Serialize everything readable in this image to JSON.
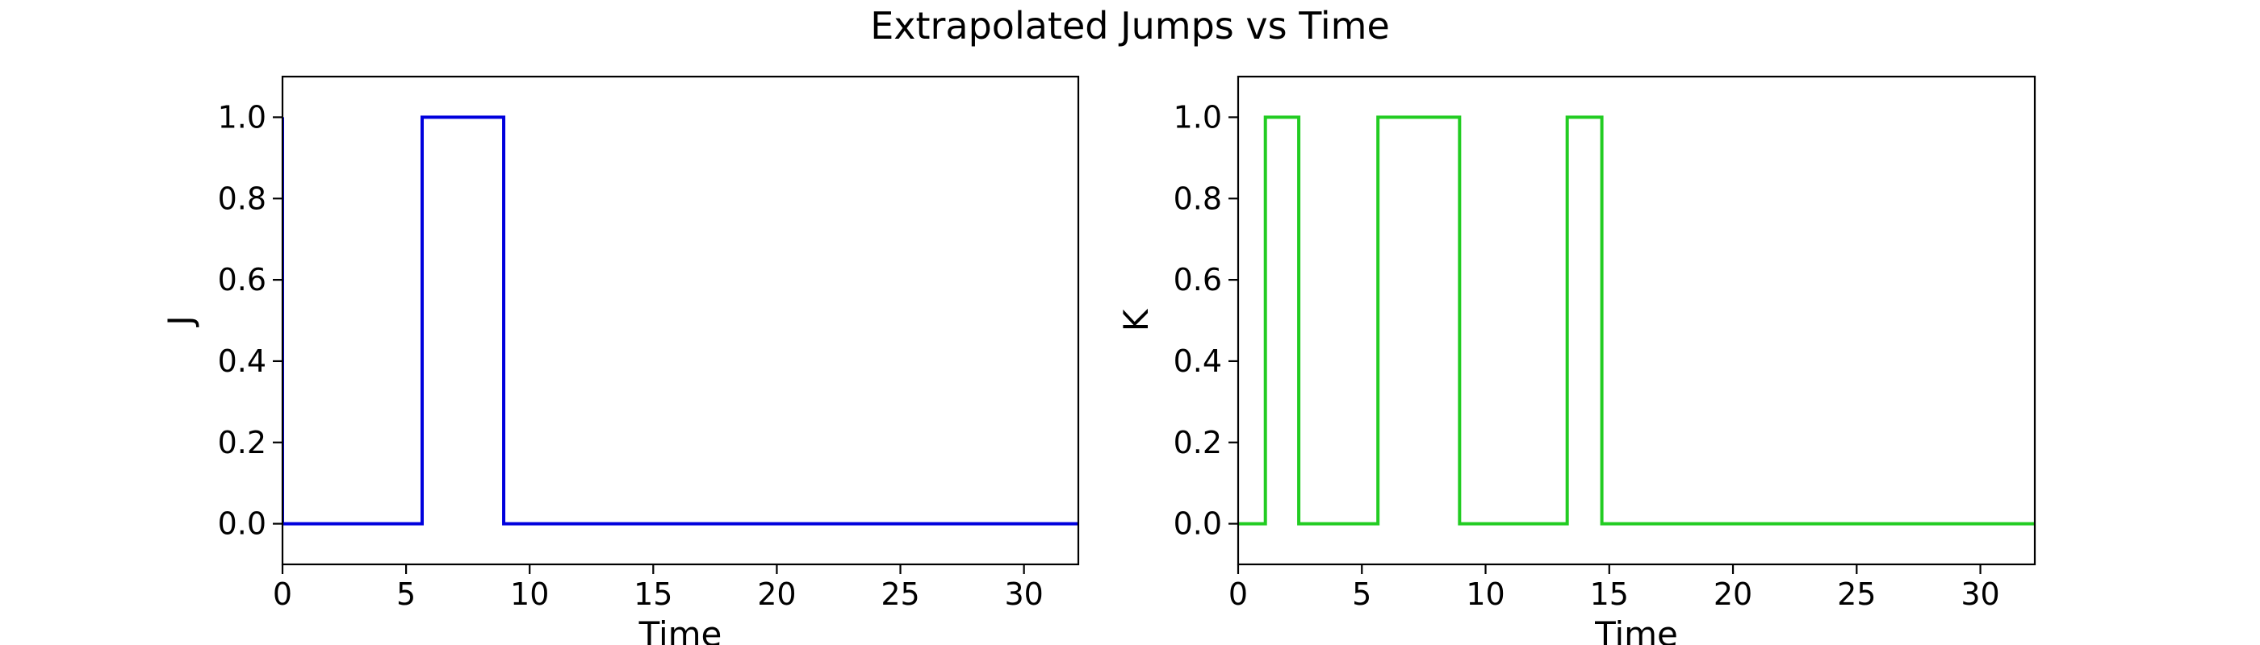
{
  "figure": {
    "title": "Extrapolated Jumps vs Time"
  },
  "chart_data": [
    {
      "type": "line",
      "step": "post",
      "xlabel": "Time",
      "ylabel": "J",
      "xlim": [
        0,
        32.2
      ],
      "ylim": [
        -0.1,
        1.1
      ],
      "xticks": [
        0,
        5,
        10,
        15,
        20,
        25,
        30
      ],
      "yticks": [
        0.0,
        0.2,
        0.4,
        0.6,
        0.8,
        1.0
      ],
      "tick_labels_y": [
        "0.0",
        "0.2",
        "0.4",
        "0.6",
        "0.8",
        "1.0"
      ],
      "tick_labels_x": [
        "0",
        "5",
        "10",
        "15",
        "20",
        "25",
        "30"
      ],
      "color": "#0000dd",
      "x": [
        0,
        0,
        5.65,
        8.95,
        32.2
      ],
      "y": [
        1,
        0,
        1,
        0,
        0
      ]
    },
    {
      "type": "line",
      "step": "post",
      "xlabel": "Time",
      "ylabel": "K",
      "xlim": [
        0,
        32.2
      ],
      "ylim": [
        -0.1,
        1.1
      ],
      "xticks": [
        0,
        5,
        10,
        15,
        20,
        25,
        30
      ],
      "yticks": [
        0.0,
        0.2,
        0.4,
        0.6,
        0.8,
        1.0
      ],
      "tick_labels_y": [
        "0.0",
        "0.2",
        "0.4",
        "0.6",
        "0.8",
        "1.0"
      ],
      "tick_labels_x": [
        "0",
        "5",
        "10",
        "15",
        "20",
        "25",
        "30"
      ],
      "color": "#22cc22",
      "x": [
        0,
        1.1,
        2.45,
        5.65,
        8.95,
        13.3,
        14.7,
        32.2
      ],
      "y": [
        0,
        1,
        0,
        1,
        0,
        1,
        0,
        0
      ]
    }
  ]
}
